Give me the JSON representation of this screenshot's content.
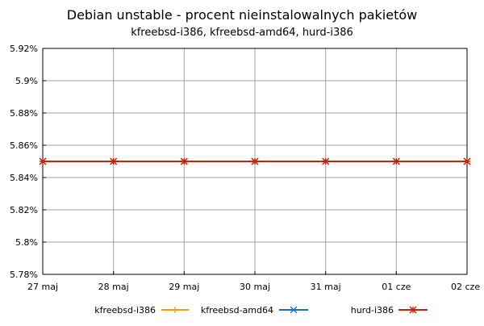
{
  "chart_data": {
    "type": "line",
    "title": "Debian unstable - procent nieinstalowalnych pakietów",
    "subtitle": "kfreebsd-i386, kfreebsd-amd64, hurd-i386",
    "xlabel": "",
    "ylabel": "",
    "x": [
      "27 maj",
      "28 maj",
      "29 maj",
      "30 maj",
      "31 maj",
      "01 cze",
      "02 cze"
    ],
    "ylim": [
      5.78,
      5.92
    ],
    "yticks": [
      "5.78%",
      "5.8%",
      "5.82%",
      "5.84%",
      "5.86%",
      "5.88%",
      "5.9%",
      "5.92%"
    ],
    "ytick_values": [
      5.78,
      5.8,
      5.82,
      5.84,
      5.86,
      5.88,
      5.9,
      5.92
    ],
    "grid": true,
    "legend_position": "bottom",
    "series": [
      {
        "name": "kfreebsd-i386",
        "color": "#ff9900",
        "marker": "plus",
        "values": [
          5.85,
          5.85,
          5.85,
          5.85,
          5.85,
          5.85,
          5.85
        ]
      },
      {
        "name": "kfreebsd-amd64",
        "color": "#1a6fc4",
        "marker": "cross",
        "values": [
          5.85,
          5.85,
          5.85,
          5.85,
          5.85,
          5.85,
          5.85
        ]
      },
      {
        "name": "hurd-i386",
        "color": "#cc2200",
        "marker": "star",
        "values": [
          5.85,
          5.85,
          5.85,
          5.85,
          5.85,
          5.85,
          5.85
        ]
      }
    ]
  }
}
